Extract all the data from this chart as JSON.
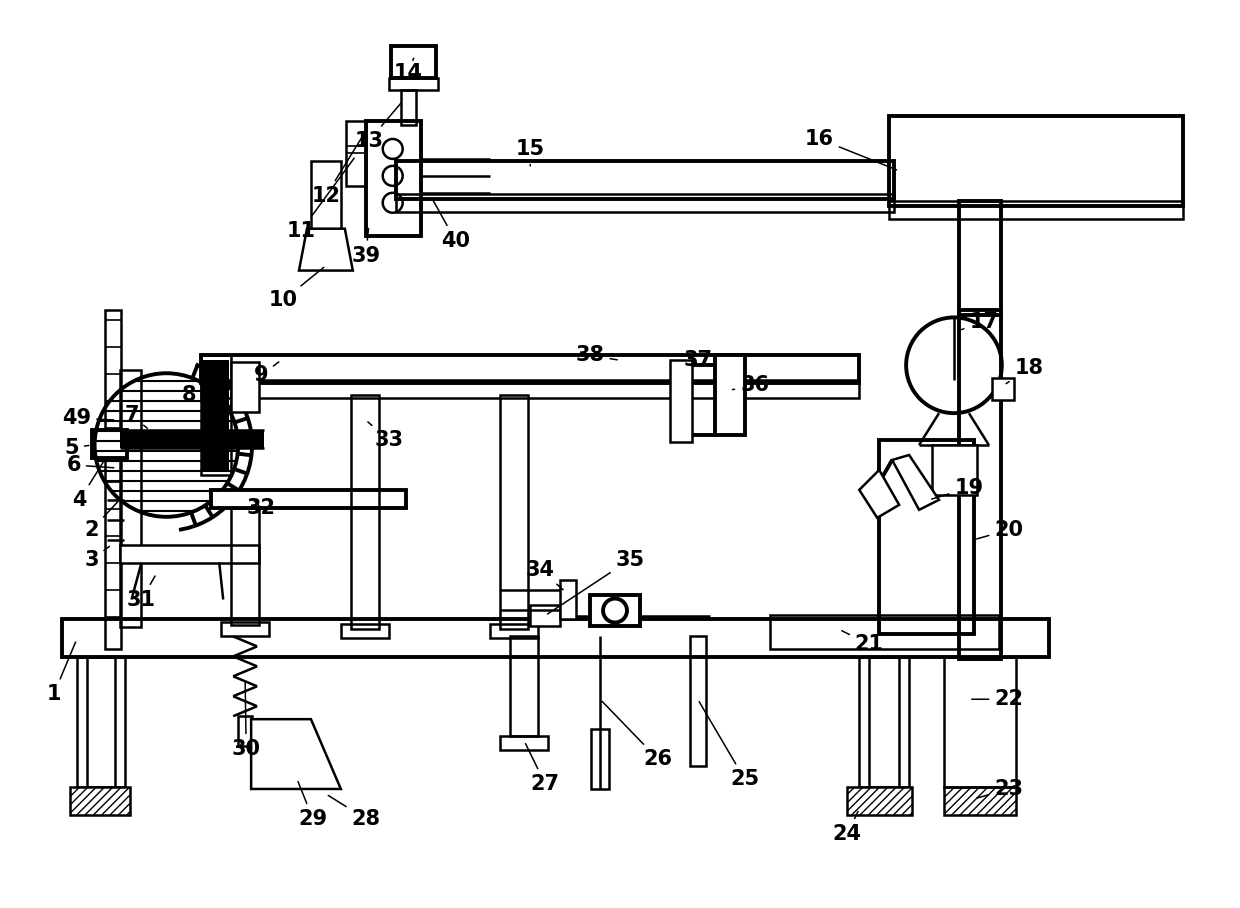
{
  "bg_color": "#ffffff",
  "line_color": "#000000",
  "fig_width": 12.4,
  "fig_height": 9.08
}
